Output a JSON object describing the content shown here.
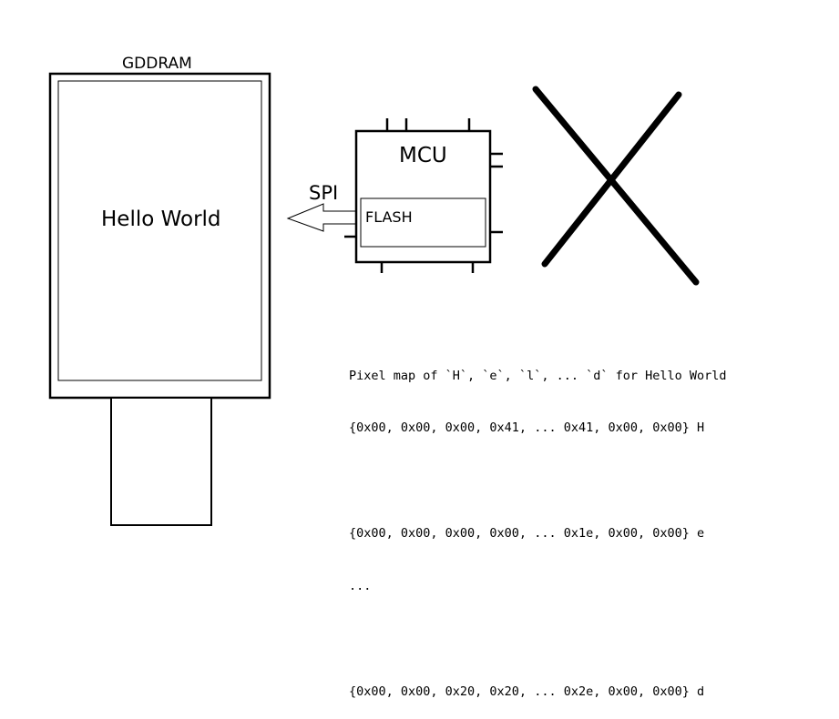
{
  "display": {
    "title": "GDDRAM",
    "screen_text": "Hello World"
  },
  "mcu": {
    "label": "MCU",
    "flash_label": "FLASH"
  },
  "link": {
    "label": "SPI"
  },
  "cross_mark": {
    "icon": "cross-mark-icon"
  },
  "pixel_map": {
    "heading": "Pixel map of `H`, `e`, `l`, ... `d` for Hello World",
    "rows": [
      "{0x00, 0x00, 0x00, 0x41, ... 0x41, 0x00, 0x00} H",
      "",
      "{0x00, 0x00, 0x00, 0x00, ... 0x1e, 0x00, 0x00} e",
      "...",
      "",
      "{0x00, 0x00, 0x20, 0x20, ... 0x2e, 0x00, 0x00} d"
    ]
  }
}
